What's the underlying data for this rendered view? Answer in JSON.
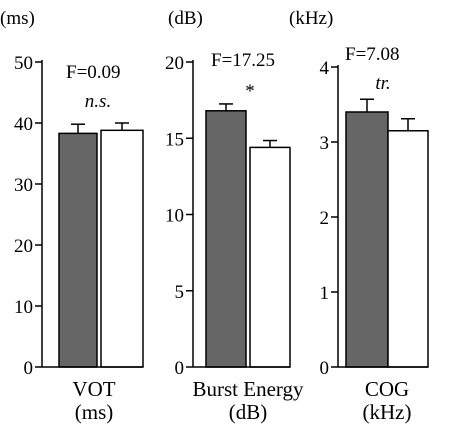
{
  "colors": {
    "condition_a": "#666666",
    "condition_b": "#ffffff",
    "ink": "#000000"
  },
  "chart_data": [
    {
      "type": "bar",
      "unit_label": "(ms)",
      "stat": "F=0.09",
      "significance": "n.s.",
      "significance_italic": true,
      "xlabel": [
        "VOT",
        "(ms)"
      ],
      "ylim": [
        0,
        50
      ],
      "yticks": [
        0,
        10,
        20,
        30,
        40,
        50
      ],
      "series": [
        {
          "value": 38.3,
          "error": 1.5
        },
        {
          "value": 38.8,
          "error": 1.2
        }
      ]
    },
    {
      "type": "bar",
      "unit_label": "(dB)",
      "stat": "F=17.25",
      "significance": "*",
      "significance_italic": false,
      "xlabel": [
        "Burst Energy",
        "(dB)"
      ],
      "ylim": [
        0,
        20
      ],
      "yticks": [
        0,
        5,
        10,
        15,
        20
      ],
      "series": [
        {
          "value": 16.8,
          "error": 0.45
        },
        {
          "value": 14.4,
          "error": 0.45
        }
      ]
    },
    {
      "type": "bar",
      "unit_label": "(kHz)",
      "stat": "F=7.08",
      "significance": "tr.",
      "significance_italic": true,
      "xlabel": [
        "COG",
        "(kHz)"
      ],
      "ylim": [
        0,
        4
      ],
      "yticks": [
        0,
        1,
        2,
        3,
        4
      ],
      "series": [
        {
          "value": 3.4,
          "error": 0.17
        },
        {
          "value": 3.15,
          "error": 0.16
        }
      ]
    }
  ]
}
